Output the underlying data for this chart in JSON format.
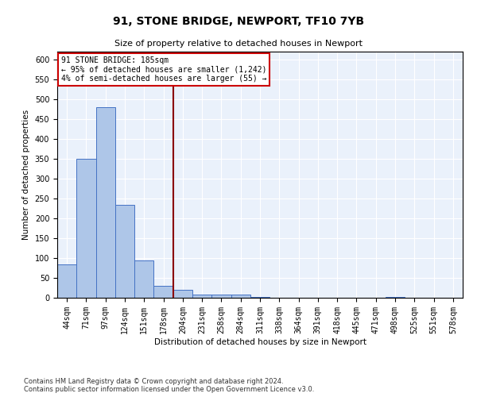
{
  "title": "91, STONE BRIDGE, NEWPORT, TF10 7YB",
  "subtitle": "Size of property relative to detached houses in Newport",
  "xlabel": "Distribution of detached houses by size in Newport",
  "ylabel": "Number of detached properties",
  "footer_line1": "Contains HM Land Registry data © Crown copyright and database right 2024.",
  "footer_line2": "Contains public sector information licensed under the Open Government Licence v3.0.",
  "annotation_line1": "91 STONE BRIDGE: 185sqm",
  "annotation_line2": "← 95% of detached houses are smaller (1,242)",
  "annotation_line3": "4% of semi-detached houses are larger (55) →",
  "bar_labels": [
    "44sqm",
    "71sqm",
    "97sqm",
    "124sqm",
    "151sqm",
    "178sqm",
    "204sqm",
    "231sqm",
    "258sqm",
    "284sqm",
    "311sqm",
    "338sqm",
    "364sqm",
    "391sqm",
    "418sqm",
    "445sqm",
    "471sqm",
    "498sqm",
    "525sqm",
    "551sqm",
    "578sqm"
  ],
  "bar_values": [
    85,
    350,
    480,
    235,
    95,
    30,
    20,
    8,
    8,
    8,
    3,
    0,
    0,
    0,
    0,
    0,
    0,
    3,
    0,
    0,
    0
  ],
  "bar_color": "#aec6e8",
  "bar_edge_color": "#4472c4",
  "vline_x": 5.5,
  "vline_color": "#8b0000",
  "background_color": "#eaf1fb",
  "grid_color": "#ffffff",
  "ylim": [
    0,
    620
  ],
  "yticks": [
    0,
    50,
    100,
    150,
    200,
    250,
    300,
    350,
    400,
    450,
    500,
    550,
    600
  ],
  "annotation_box_color": "#ffffff",
  "annotation_box_edge": "#cc0000",
  "title_fontsize": 10,
  "subtitle_fontsize": 8,
  "ylabel_fontsize": 7.5,
  "xlabel_fontsize": 7.5,
  "tick_fontsize": 7,
  "footer_fontsize": 6,
  "annotation_fontsize": 7
}
